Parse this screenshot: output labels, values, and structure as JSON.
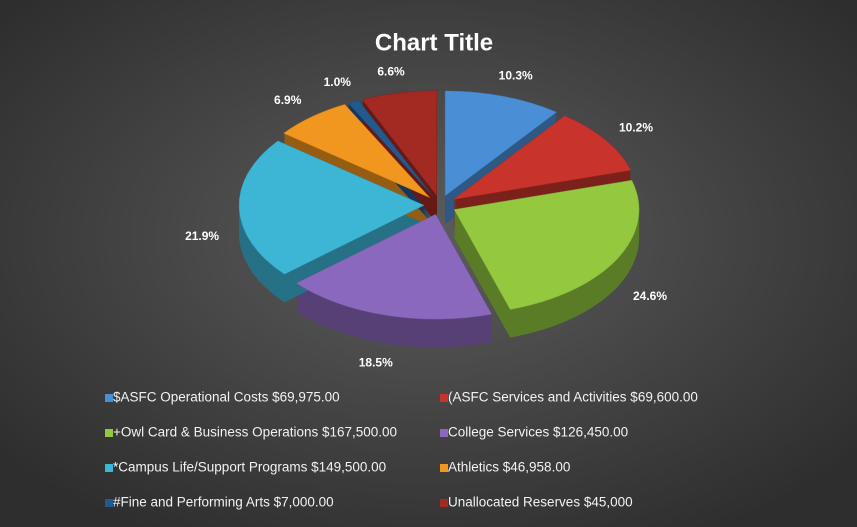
{
  "chart_data": {
    "type": "pie",
    "title": "Chart Title",
    "categories": [
      "$ASFC Operational Costs   $69,975.00",
      "(ASFC Services and Activities $69,600.00",
      "+Owl Card & Business Operations $167,500.00",
      "College Services $126,450.00",
      "*Campus Life/Support Programs  $149,500.00",
      "Athletics  $46,958.00",
      "#Fine and Performing Arts $7,000.00",
      "Unallocated Reserves  $45,000"
    ],
    "values": [
      10.3,
      10.2,
      24.6,
      18.5,
      21.9,
      6.9,
      1.0,
      6.6
    ],
    "value_labels": [
      "10.3%",
      "10.2%",
      "24.6%",
      "18.5%",
      "21.9%",
      "6.9%",
      "1.0%",
      "6.6%"
    ],
    "colors": [
      "#4a8fd6",
      "#c8332c",
      "#93c83f",
      "#8a68bd",
      "#3db6d6",
      "#f1961f",
      "#24598f",
      "#a32a22"
    ]
  }
}
